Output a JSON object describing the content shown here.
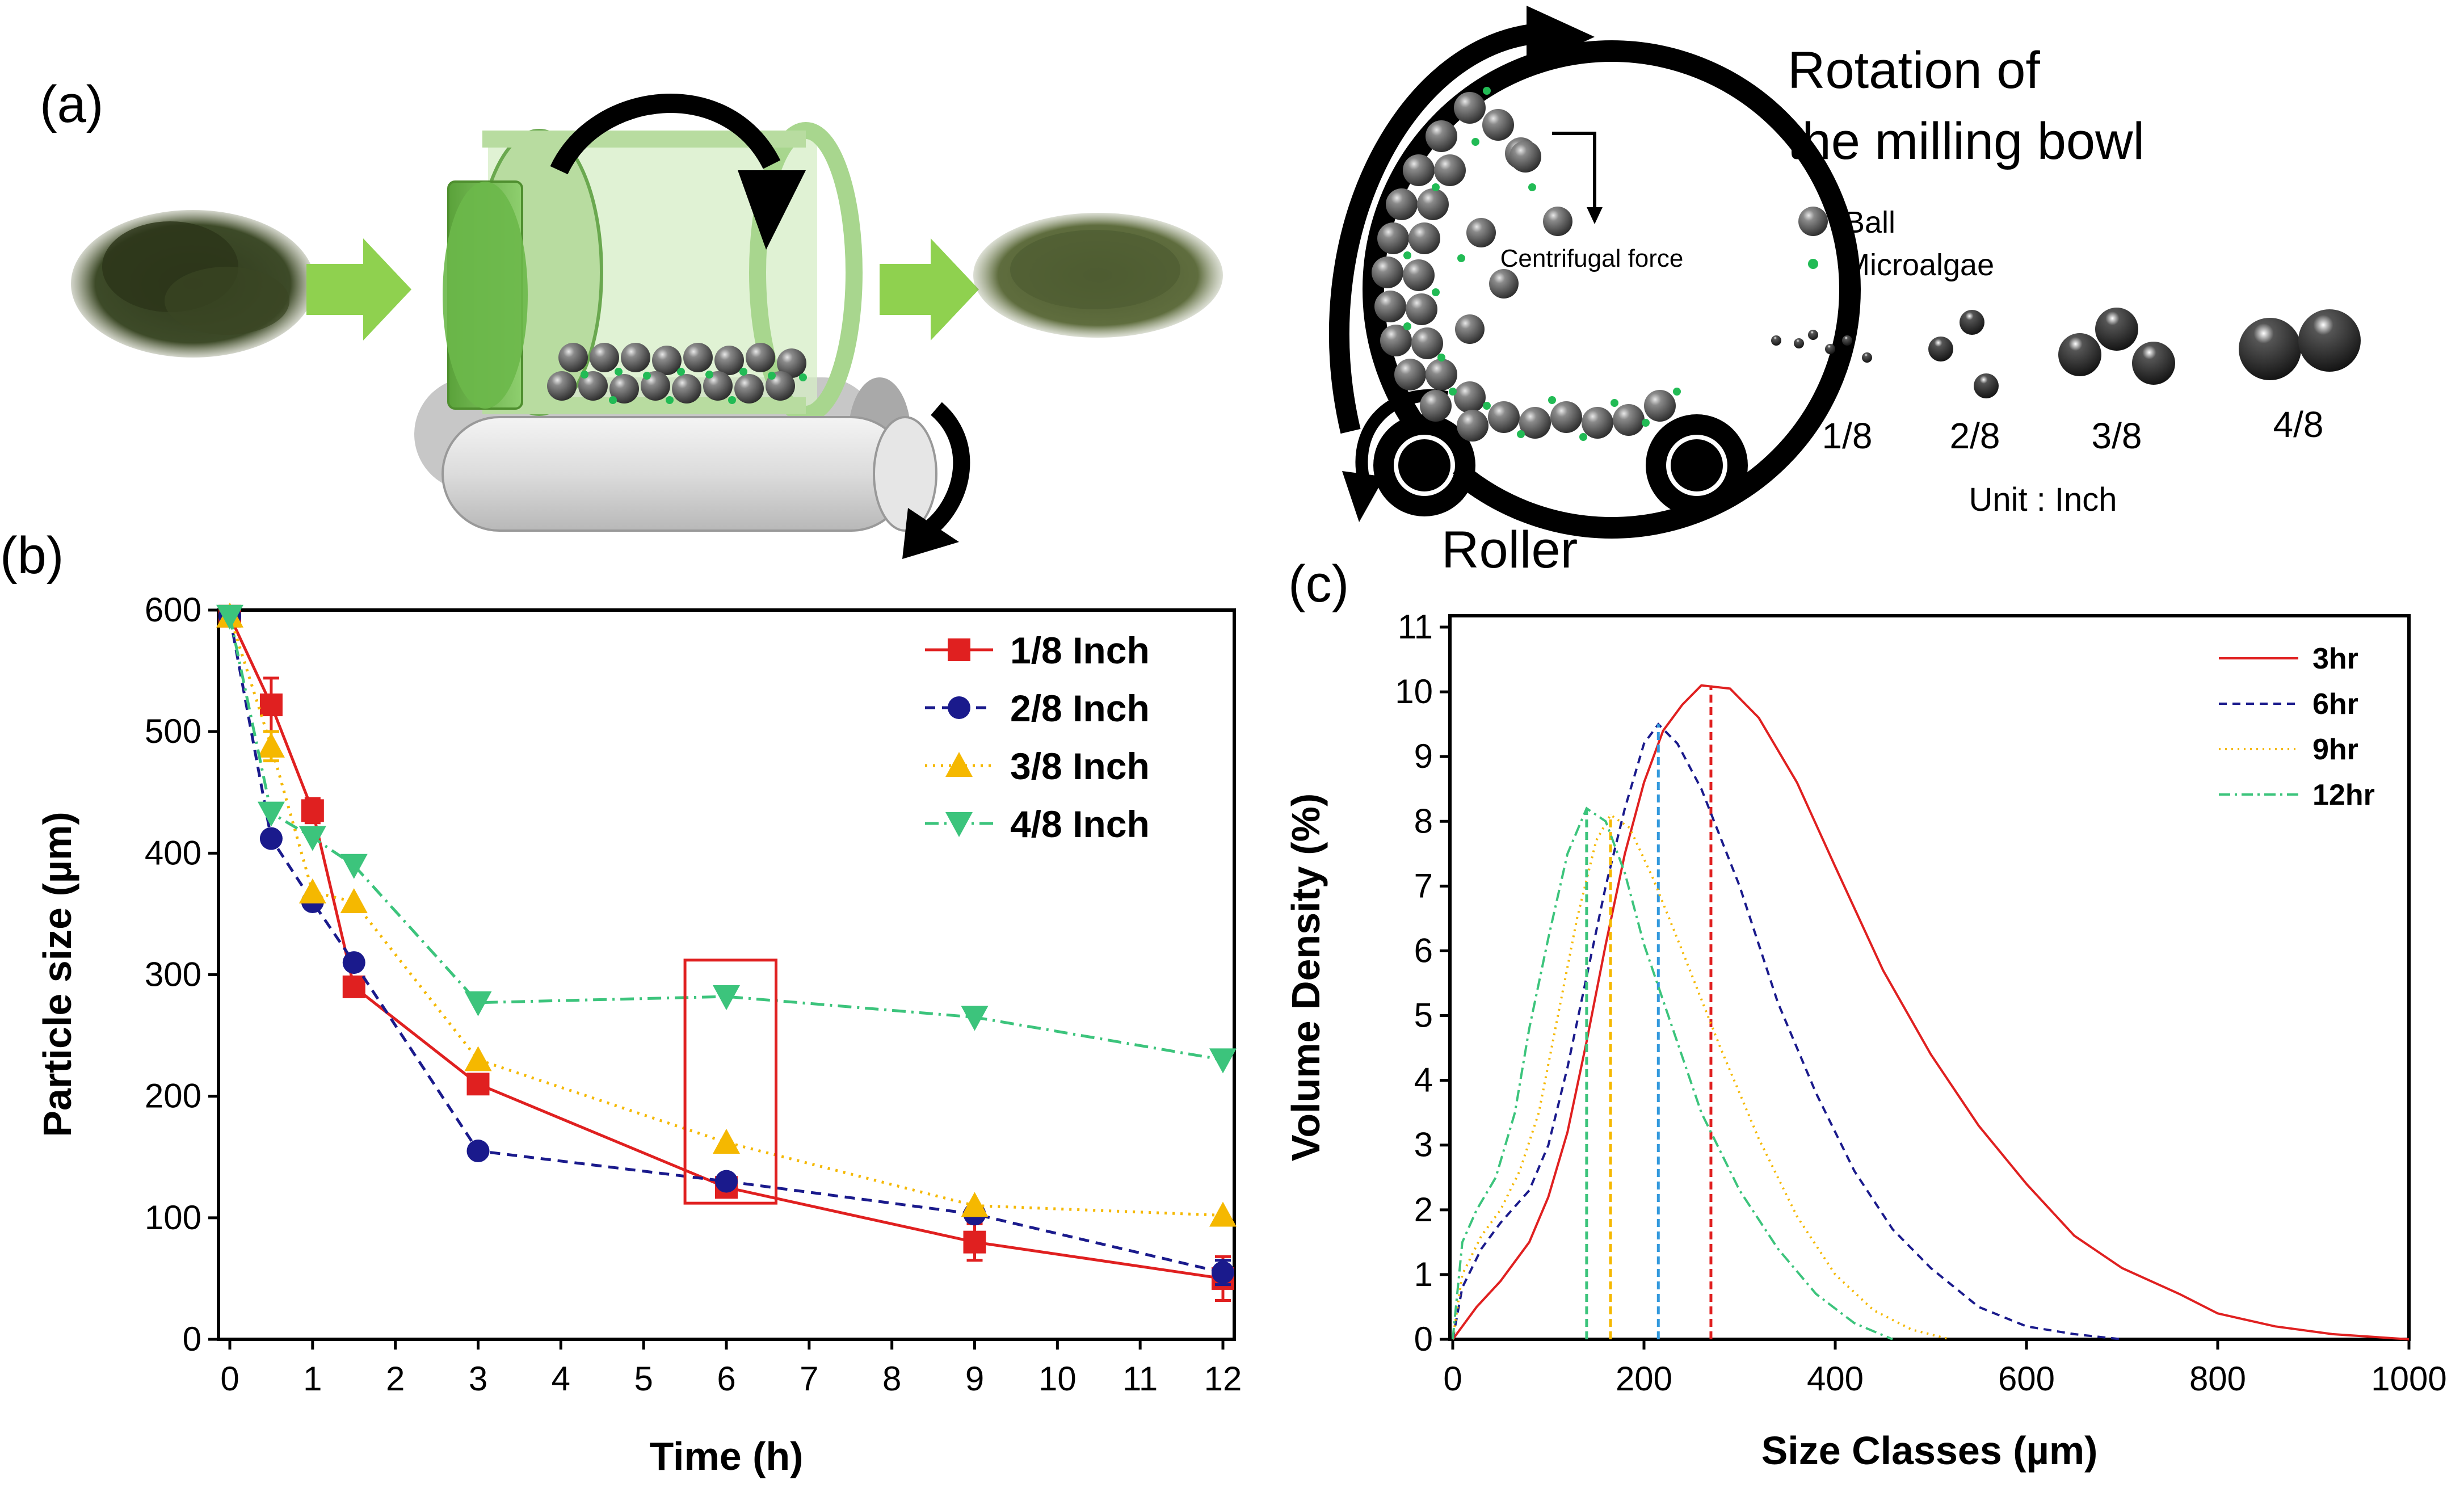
{
  "figure": {
    "panel_labels": {
      "a": "(a)",
      "b": "(b)",
      "c": "(c)"
    }
  },
  "diagram": {
    "rotation_title_line1": "Rotation of",
    "rotation_title_line2": "the milling bowl",
    "legend_ball": "Ball",
    "legend_microalgae": "Microalgae",
    "centrifugal_label": "Centrifugal force",
    "roller_label": "Roller",
    "ball_sizes": [
      "1/8",
      "2/8",
      "3/8",
      "4/8"
    ],
    "unit_label": "Unit : Inch",
    "colors": {
      "ball": "#5a5a5a",
      "microalgae": "#22bb55",
      "arrow": "#8fd14f",
      "drum": "#b8dca0",
      "powder_dark": "#3b4a2a",
      "powder_light": "#5d6b3e"
    }
  },
  "chart_data": [
    {
      "id": "b",
      "type": "line",
      "xlabel": "Time (h)",
      "ylabel": "Particle size (µm)",
      "xlim": [
        0,
        12
      ],
      "ylim": [
        0,
        600
      ],
      "xticks": [
        "0",
        "1",
        "2",
        "3",
        "4",
        "5",
        "6",
        "7",
        "8",
        "9",
        "10",
        "11",
        "12"
      ],
      "yticks": [
        "0",
        "100",
        "200",
        "300",
        "400",
        "500",
        "600"
      ],
      "x": [
        0,
        0.5,
        1,
        1.5,
        3,
        6,
        9,
        12
      ],
      "series": [
        {
          "name": "1/8 Inch",
          "color": "#e02020",
          "marker": "square",
          "dash": "",
          "values": [
            595,
            522,
            435,
            290,
            210,
            125,
            80,
            50
          ],
          "errors": [
            0,
            22,
            10,
            0,
            0,
            0,
            15,
            18
          ]
        },
        {
          "name": "2/8 Inch",
          "color": "#1a1a8c",
          "marker": "circle",
          "dash": "18,12",
          "values": [
            595,
            412,
            360,
            310,
            155,
            130,
            103,
            55
          ],
          "errors": [
            0,
            0,
            0,
            0,
            0,
            0,
            0,
            10
          ]
        },
        {
          "name": "3/8 Inch",
          "color": "#f5b800",
          "marker": "triangle-up",
          "dash": "4,10",
          "values": [
            595,
            488,
            368,
            360,
            230,
            162,
            110,
            102
          ],
          "errors": [
            0,
            12,
            0,
            0,
            0,
            0,
            0,
            0
          ]
        },
        {
          "name": "4/8 Inch",
          "color": "#3cc47c",
          "marker": "triangle-down",
          "dash": "24,10,4,10",
          "values": [
            595,
            433,
            413,
            390,
            277,
            282,
            265,
            230
          ],
          "errors": [
            0,
            0,
            0,
            0,
            0,
            0,
            0,
            0
          ]
        }
      ],
      "annotation": {
        "type": "rectangle",
        "x_range": [
          5.5,
          6.6
        ],
        "y_range": [
          112,
          312
        ],
        "color": "#e02020"
      }
    },
    {
      "id": "c",
      "type": "line",
      "xlabel": "Size Classes (µm)",
      "ylabel": "Volume Density (%)",
      "xlim": [
        0,
        1000
      ],
      "ylim": [
        0,
        11
      ],
      "xticks": [
        "0",
        "200",
        "400",
        "600",
        "800",
        "1000"
      ],
      "yticks": [
        "0",
        "1",
        "2",
        "3",
        "4",
        "5",
        "6",
        "7",
        "8",
        "9",
        "10",
        "11"
      ],
      "series": [
        {
          "name": "3hr",
          "color": "#e02020",
          "dash": "",
          "peak_x": 270,
          "points": [
            [
              0,
              0
            ],
            [
              10,
              0.2
            ],
            [
              25,
              0.5
            ],
            [
              50,
              0.9
            ],
            [
              80,
              1.5
            ],
            [
              100,
              2.2
            ],
            [
              120,
              3.2
            ],
            [
              140,
              4.6
            ],
            [
              160,
              6.1
            ],
            [
              180,
              7.5
            ],
            [
              200,
              8.6
            ],
            [
              220,
              9.4
            ],
            [
              240,
              9.8
            ],
            [
              260,
              10.1
            ],
            [
              290,
              10.05
            ],
            [
              320,
              9.6
            ],
            [
              360,
              8.6
            ],
            [
              400,
              7.3
            ],
            [
              450,
              5.7
            ],
            [
              500,
              4.4
            ],
            [
              550,
              3.3
            ],
            [
              600,
              2.4
            ],
            [
              650,
              1.6
            ],
            [
              700,
              1.1
            ],
            [
              760,
              0.7
            ],
            [
              800,
              0.4
            ],
            [
              860,
              0.2
            ],
            [
              920,
              0.08
            ],
            [
              1000,
              0
            ]
          ]
        },
        {
          "name": "6hr",
          "color": "#1a1a8c",
          "dash": "14,10",
          "peak_x": 215,
          "points": [
            [
              0,
              0
            ],
            [
              10,
              0.8
            ],
            [
              30,
              1.4
            ],
            [
              50,
              1.8
            ],
            [
              80,
              2.3
            ],
            [
              100,
              3.0
            ],
            [
              120,
              4.2
            ],
            [
              140,
              5.6
            ],
            [
              160,
              7.0
            ],
            [
              180,
              8.2
            ],
            [
              200,
              9.2
            ],
            [
              215,
              9.5
            ],
            [
              235,
              9.2
            ],
            [
              260,
              8.5
            ],
            [
              300,
              7.0
            ],
            [
              340,
              5.2
            ],
            [
              380,
              3.8
            ],
            [
              420,
              2.6
            ],
            [
              460,
              1.7
            ],
            [
              500,
              1.1
            ],
            [
              550,
              0.5
            ],
            [
              600,
              0.2
            ],
            [
              650,
              0.08
            ],
            [
              700,
              0
            ]
          ]
        },
        {
          "name": "9hr",
          "color": "#f5b800",
          "dash": "3,8",
          "peak_x": 165,
          "points": [
            [
              0,
              0
            ],
            [
              10,
              1.0
            ],
            [
              30,
              1.6
            ],
            [
              50,
              2.0
            ],
            [
              70,
              2.6
            ],
            [
              90,
              3.5
            ],
            [
              110,
              5.0
            ],
            [
              130,
              6.5
            ],
            [
              150,
              7.7
            ],
            [
              165,
              8.1
            ],
            [
              185,
              7.9
            ],
            [
              210,
              7.1
            ],
            [
              240,
              6.0
            ],
            [
              280,
              4.5
            ],
            [
              320,
              3.1
            ],
            [
              360,
              1.9
            ],
            [
              400,
              1.0
            ],
            [
              440,
              0.45
            ],
            [
              480,
              0.15
            ],
            [
              520,
              0
            ]
          ]
        },
        {
          "name": "12hr",
          "color": "#3cc47c",
          "dash": "20,8,4,8",
          "peak_x": 140,
          "points": [
            [
              0,
              0
            ],
            [
              10,
              1.5
            ],
            [
              25,
              2.0
            ],
            [
              45,
              2.5
            ],
            [
              65,
              3.5
            ],
            [
              80,
              4.8
            ],
            [
              100,
              6.2
            ],
            [
              120,
              7.5
            ],
            [
              140,
              8.2
            ],
            [
              160,
              8.0
            ],
            [
              180,
              7.2
            ],
            [
              200,
              6.1
            ],
            [
              230,
              4.8
            ],
            [
              260,
              3.5
            ],
            [
              300,
              2.3
            ],
            [
              340,
              1.4
            ],
            [
              380,
              0.7
            ],
            [
              420,
              0.25
            ],
            [
              460,
              0
            ]
          ]
        }
      ]
    }
  ]
}
